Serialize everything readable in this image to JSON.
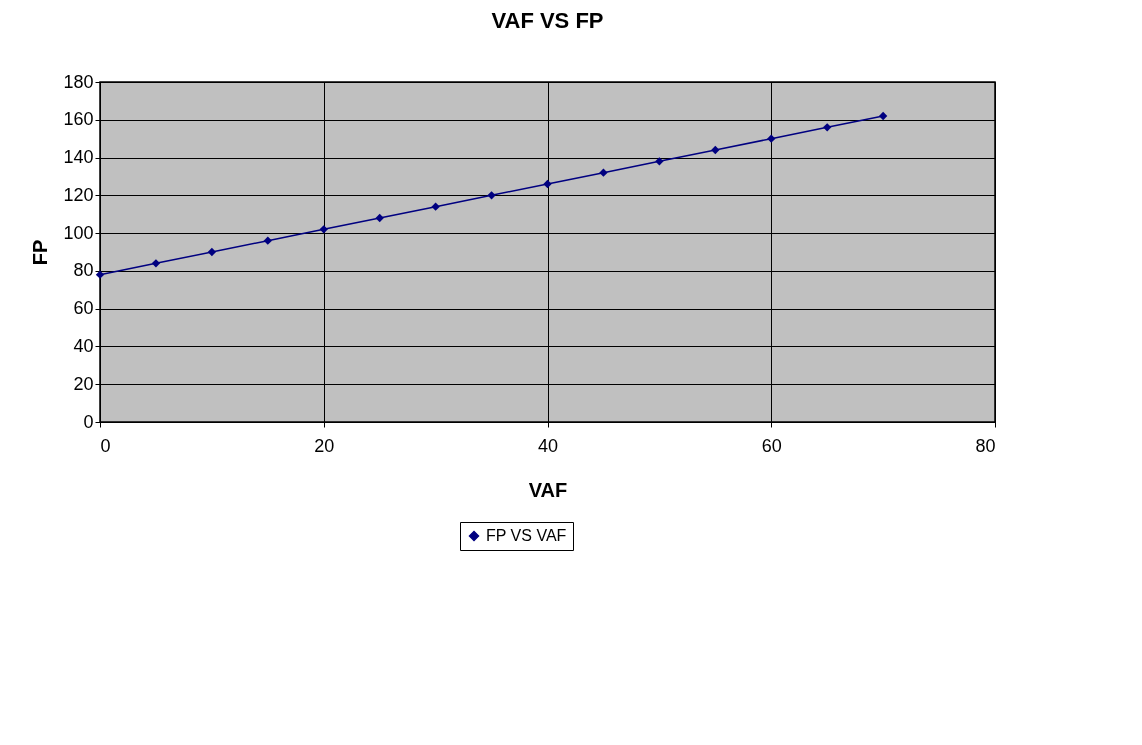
{
  "chart_data": {
    "type": "line",
    "title": "VAF VS FP",
    "xlabel": "VAF",
    "ylabel": "FP",
    "x": [
      0,
      5,
      10,
      15,
      20,
      25,
      30,
      35,
      40,
      45,
      50,
      55,
      60,
      65,
      70
    ],
    "series": [
      {
        "name": "FP VS VAF",
        "color": "#000080",
        "values": [
          78,
          84,
          90,
          96,
          102,
          108,
          114,
          120,
          126,
          132,
          138,
          144,
          150,
          156,
          162
        ]
      }
    ],
    "xlim": [
      0,
      80
    ],
    "xticks": [
      0,
      20,
      40,
      60,
      80
    ],
    "ylim": [
      0,
      180
    ],
    "yticks": [
      0,
      20,
      40,
      60,
      80,
      100,
      120,
      140,
      160,
      180
    ],
    "grid": true,
    "legend": "bottom",
    "marker": "diamond",
    "line_style": "solid"
  }
}
